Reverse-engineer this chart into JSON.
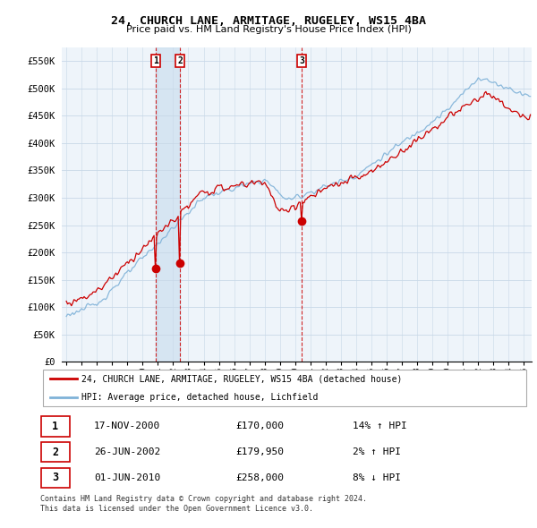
{
  "title": "24, CHURCH LANE, ARMITAGE, RUGELEY, WS15 4BA",
  "subtitle": "Price paid vs. HM Land Registry's House Price Index (HPI)",
  "legend_house": "24, CHURCH LANE, ARMITAGE, RUGELEY, WS15 4BA (detached house)",
  "legend_hpi": "HPI: Average price, detached house, Lichfield",
  "transactions": [
    {
      "num": 1,
      "date": "17-NOV-2000",
      "price": 170000,
      "pct": "14%",
      "dir": "↑"
    },
    {
      "num": 2,
      "date": "26-JUN-2002",
      "price": 179950,
      "pct": "2%",
      "dir": "↑"
    },
    {
      "num": 3,
      "date": "01-JUN-2010",
      "price": 258000,
      "pct": "8%",
      "dir": "↓"
    }
  ],
  "t1_year": 2000.875,
  "t2_year": 2002.458,
  "t3_year": 2010.417,
  "footnote1": "Contains HM Land Registry data © Crown copyright and database right 2024.",
  "footnote2": "This data is licensed under the Open Government Licence v3.0.",
  "house_color": "#cc0000",
  "hpi_color": "#7fb2d8",
  "vline_color": "#cc0000",
  "fill_color": "#cce0f0",
  "ylim_max": 575000,
  "yticks": [
    0,
    50000,
    100000,
    150000,
    200000,
    250000,
    300000,
    350000,
    400000,
    450000,
    500000,
    550000
  ],
  "ytick_labels": [
    "£0",
    "£50K",
    "£100K",
    "£150K",
    "£200K",
    "£250K",
    "£300K",
    "£350K",
    "£400K",
    "£450K",
    "£500K",
    "£550K"
  ],
  "xstart": 1995,
  "xend": 2025,
  "background_color": "#ffffff",
  "grid_color": "#c8d8e8",
  "chart_bg": "#eef4fa"
}
